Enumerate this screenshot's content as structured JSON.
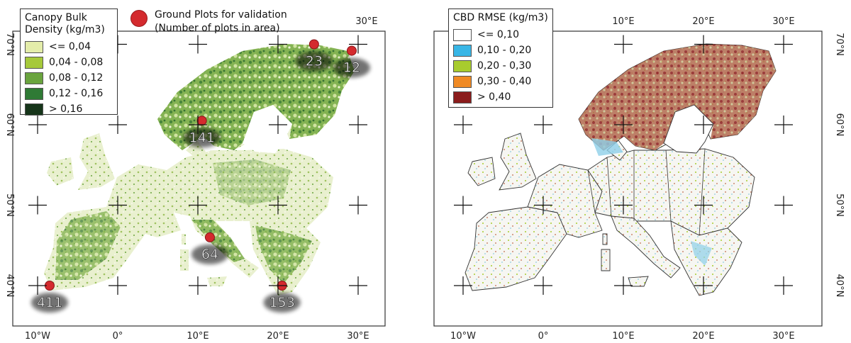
{
  "left_map": {
    "legend": {
      "title_line1": "Canopy Bulk",
      "title_line2": "Density (kg/m3)",
      "classes": [
        {
          "label": "<= 0,04",
          "color": "#e4edaa"
        },
        {
          "label": "0,04 - 0,08",
          "color": "#a6c93a"
        },
        {
          "label": "0,08 - 0,12",
          "color": "#6aa43e"
        },
        {
          "label": "0,12 - 0,16",
          "color": "#2f7a35"
        },
        {
          "label": "> 0,16",
          "color": "#16351a"
        }
      ]
    },
    "plots_legend": {
      "line1": "Ground Plots for validation",
      "line2": "(Number of plots in area)",
      "color": "#d42a2e"
    },
    "plots": [
      {
        "count": "23",
        "lon": 24.5,
        "lat": 70.0
      },
      {
        "count": "12",
        "lon": 29.2,
        "lat": 69.2
      },
      {
        "count": "141",
        "lon": 10.5,
        "lat": 60.5
      },
      {
        "count": "64",
        "lon": 11.5,
        "lat": 46.0
      },
      {
        "count": "411",
        "lon": -8.5,
        "lat": 40.0
      },
      {
        "count": "153",
        "lon": 20.5,
        "lat": 40.0
      }
    ],
    "axes": {
      "top_x": [
        "30°E"
      ],
      "bottom_x": [
        "10°W",
        "0°",
        "10°E",
        "20°E",
        "30°E"
      ],
      "left_y": [
        "70°N",
        "60°N",
        "50°N",
        "40°N"
      ]
    }
  },
  "right_map": {
    "legend": {
      "title": "CBD RMSE (kg/m3)",
      "classes": [
        {
          "label": "<= 0,10",
          "color": "#ffffff"
        },
        {
          "label": "0,10 - 0,20",
          "color": "#38b6e6"
        },
        {
          "label": "0,20 - 0,30",
          "color": "#a8cc2e"
        },
        {
          "label": "0,30 - 0,40",
          "color": "#f08a24"
        },
        {
          "label": "> 0,40",
          "color": "#8b1c1c"
        }
      ]
    },
    "axes": {
      "top_x": [
        "10°E",
        "20°E",
        "30°E"
      ],
      "bottom_x": [
        "10°W",
        "0°",
        "10°E",
        "20°E",
        "30°E"
      ],
      "right_y": [
        "70°N",
        "60°N",
        "50°N",
        "40°N"
      ]
    }
  }
}
